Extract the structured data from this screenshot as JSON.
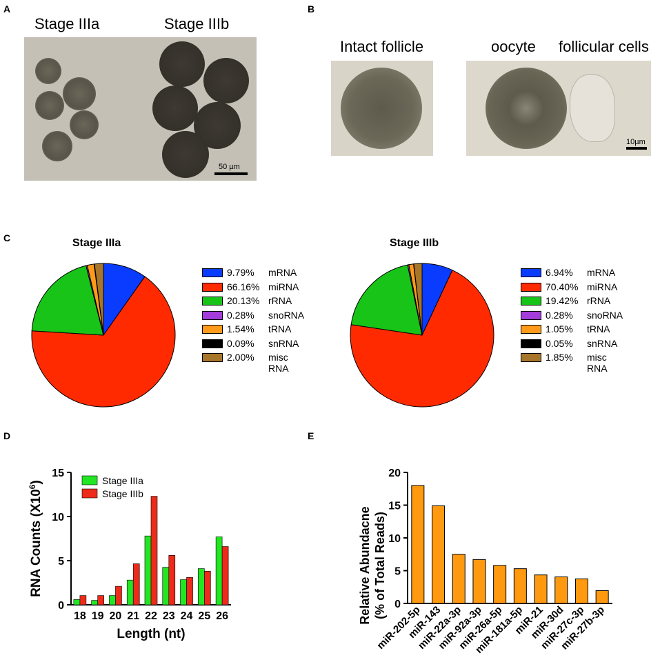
{
  "panels": {
    "a": "A",
    "b": "B",
    "c": "C",
    "d": "D",
    "e": "E"
  },
  "panel_a": {
    "label_left": "Stage IIIa",
    "label_right": "Stage IIIb",
    "scale": "50 µm"
  },
  "panel_b": {
    "label_intact": "Intact follicle",
    "label_oocyte": "oocyte",
    "label_follicular": "follicular cells",
    "scale": "10µm"
  },
  "colors": {
    "mRNA": "#0a3cff",
    "miRNA": "#ff2a00",
    "rRNA": "#18c418",
    "snoRNA": "#a43cdc",
    "tRNA": "#ff9a1a",
    "snRNA": "#000000",
    "misc RNA": "#a8762a",
    "bar_green": "#22e622",
    "bar_red": "#ee2a1a",
    "bar_orange": "#ff9a10"
  },
  "chart_data": [
    {
      "type": "pie",
      "title": "Stage IIIa",
      "slices": [
        {
          "label": "mRNA",
          "value": 9.79,
          "text": "9.79%"
        },
        {
          "label": "miRNA",
          "value": 66.16,
          "text": "66.16%"
        },
        {
          "label": "rRNA",
          "value": 20.13,
          "text": "20.13%"
        },
        {
          "label": "snoRNA",
          "value": 0.28,
          "text": "0.28%"
        },
        {
          "label": "tRNA",
          "value": 1.54,
          "text": "1.54%"
        },
        {
          "label": "snRNA",
          "value": 0.09,
          "text": "0.09%"
        },
        {
          "label": "misc RNA",
          "value": 2.0,
          "text": "2.00%"
        }
      ]
    },
    {
      "type": "pie",
      "title": "Stage IIIb",
      "slices": [
        {
          "label": "mRNA",
          "value": 6.94,
          "text": "6.94%"
        },
        {
          "label": "miRNA",
          "value": 70.4,
          "text": "70.40%"
        },
        {
          "label": "rRNA",
          "value": 19.42,
          "text": "19.42%"
        },
        {
          "label": "snoRNA",
          "value": 0.28,
          "text": "0.28%"
        },
        {
          "label": "tRNA",
          "value": 1.05,
          "text": "1.05%"
        },
        {
          "label": "snRNA",
          "value": 0.05,
          "text": "0.05%"
        },
        {
          "label": "misc RNA",
          "value": 1.85,
          "text": "1.85%"
        }
      ]
    },
    {
      "type": "bar",
      "xlabel": "Length (nt)",
      "ylabel": "RNA Counts (X10",
      "ylabel_sup": "6",
      "ylabel_close": ")",
      "categories": [
        "18",
        "19",
        "20",
        "21",
        "22",
        "23",
        "24",
        "25",
        "26"
      ],
      "ylim": [
        0,
        15
      ],
      "yticks": [
        "0",
        "5",
        "10",
        "15"
      ],
      "series": [
        {
          "name": "Stage IIIa",
          "values": [
            0.6,
            0.5,
            1.05,
            2.8,
            7.8,
            4.25,
            2.85,
            4.1,
            7.7
          ]
        },
        {
          "name": "Stage IIIb",
          "values": [
            1.05,
            1.05,
            2.1,
            4.65,
            12.3,
            5.6,
            3.1,
            3.8,
            6.6
          ]
        }
      ]
    },
    {
      "type": "bar",
      "ylabel_line1": "Relative Abundacne",
      "ylabel_line2": "(% of Total Reads)",
      "categories": [
        "miR-202-5p",
        "miR-143",
        "miR-22a-3p",
        "miR-92a-3p",
        "miR-26a-5p",
        "miR-181a-5p",
        "miR-21",
        "miR-30d",
        "miR-27c-3p",
        "miR-27b-3p"
      ],
      "values": [
        18.0,
        14.9,
        7.5,
        6.7,
        5.8,
        5.3,
        4.35,
        4.05,
        3.75,
        1.95
      ],
      "ylim": [
        0,
        20
      ],
      "yticks": [
        "0",
        "5",
        "10",
        "15",
        "20"
      ]
    }
  ]
}
